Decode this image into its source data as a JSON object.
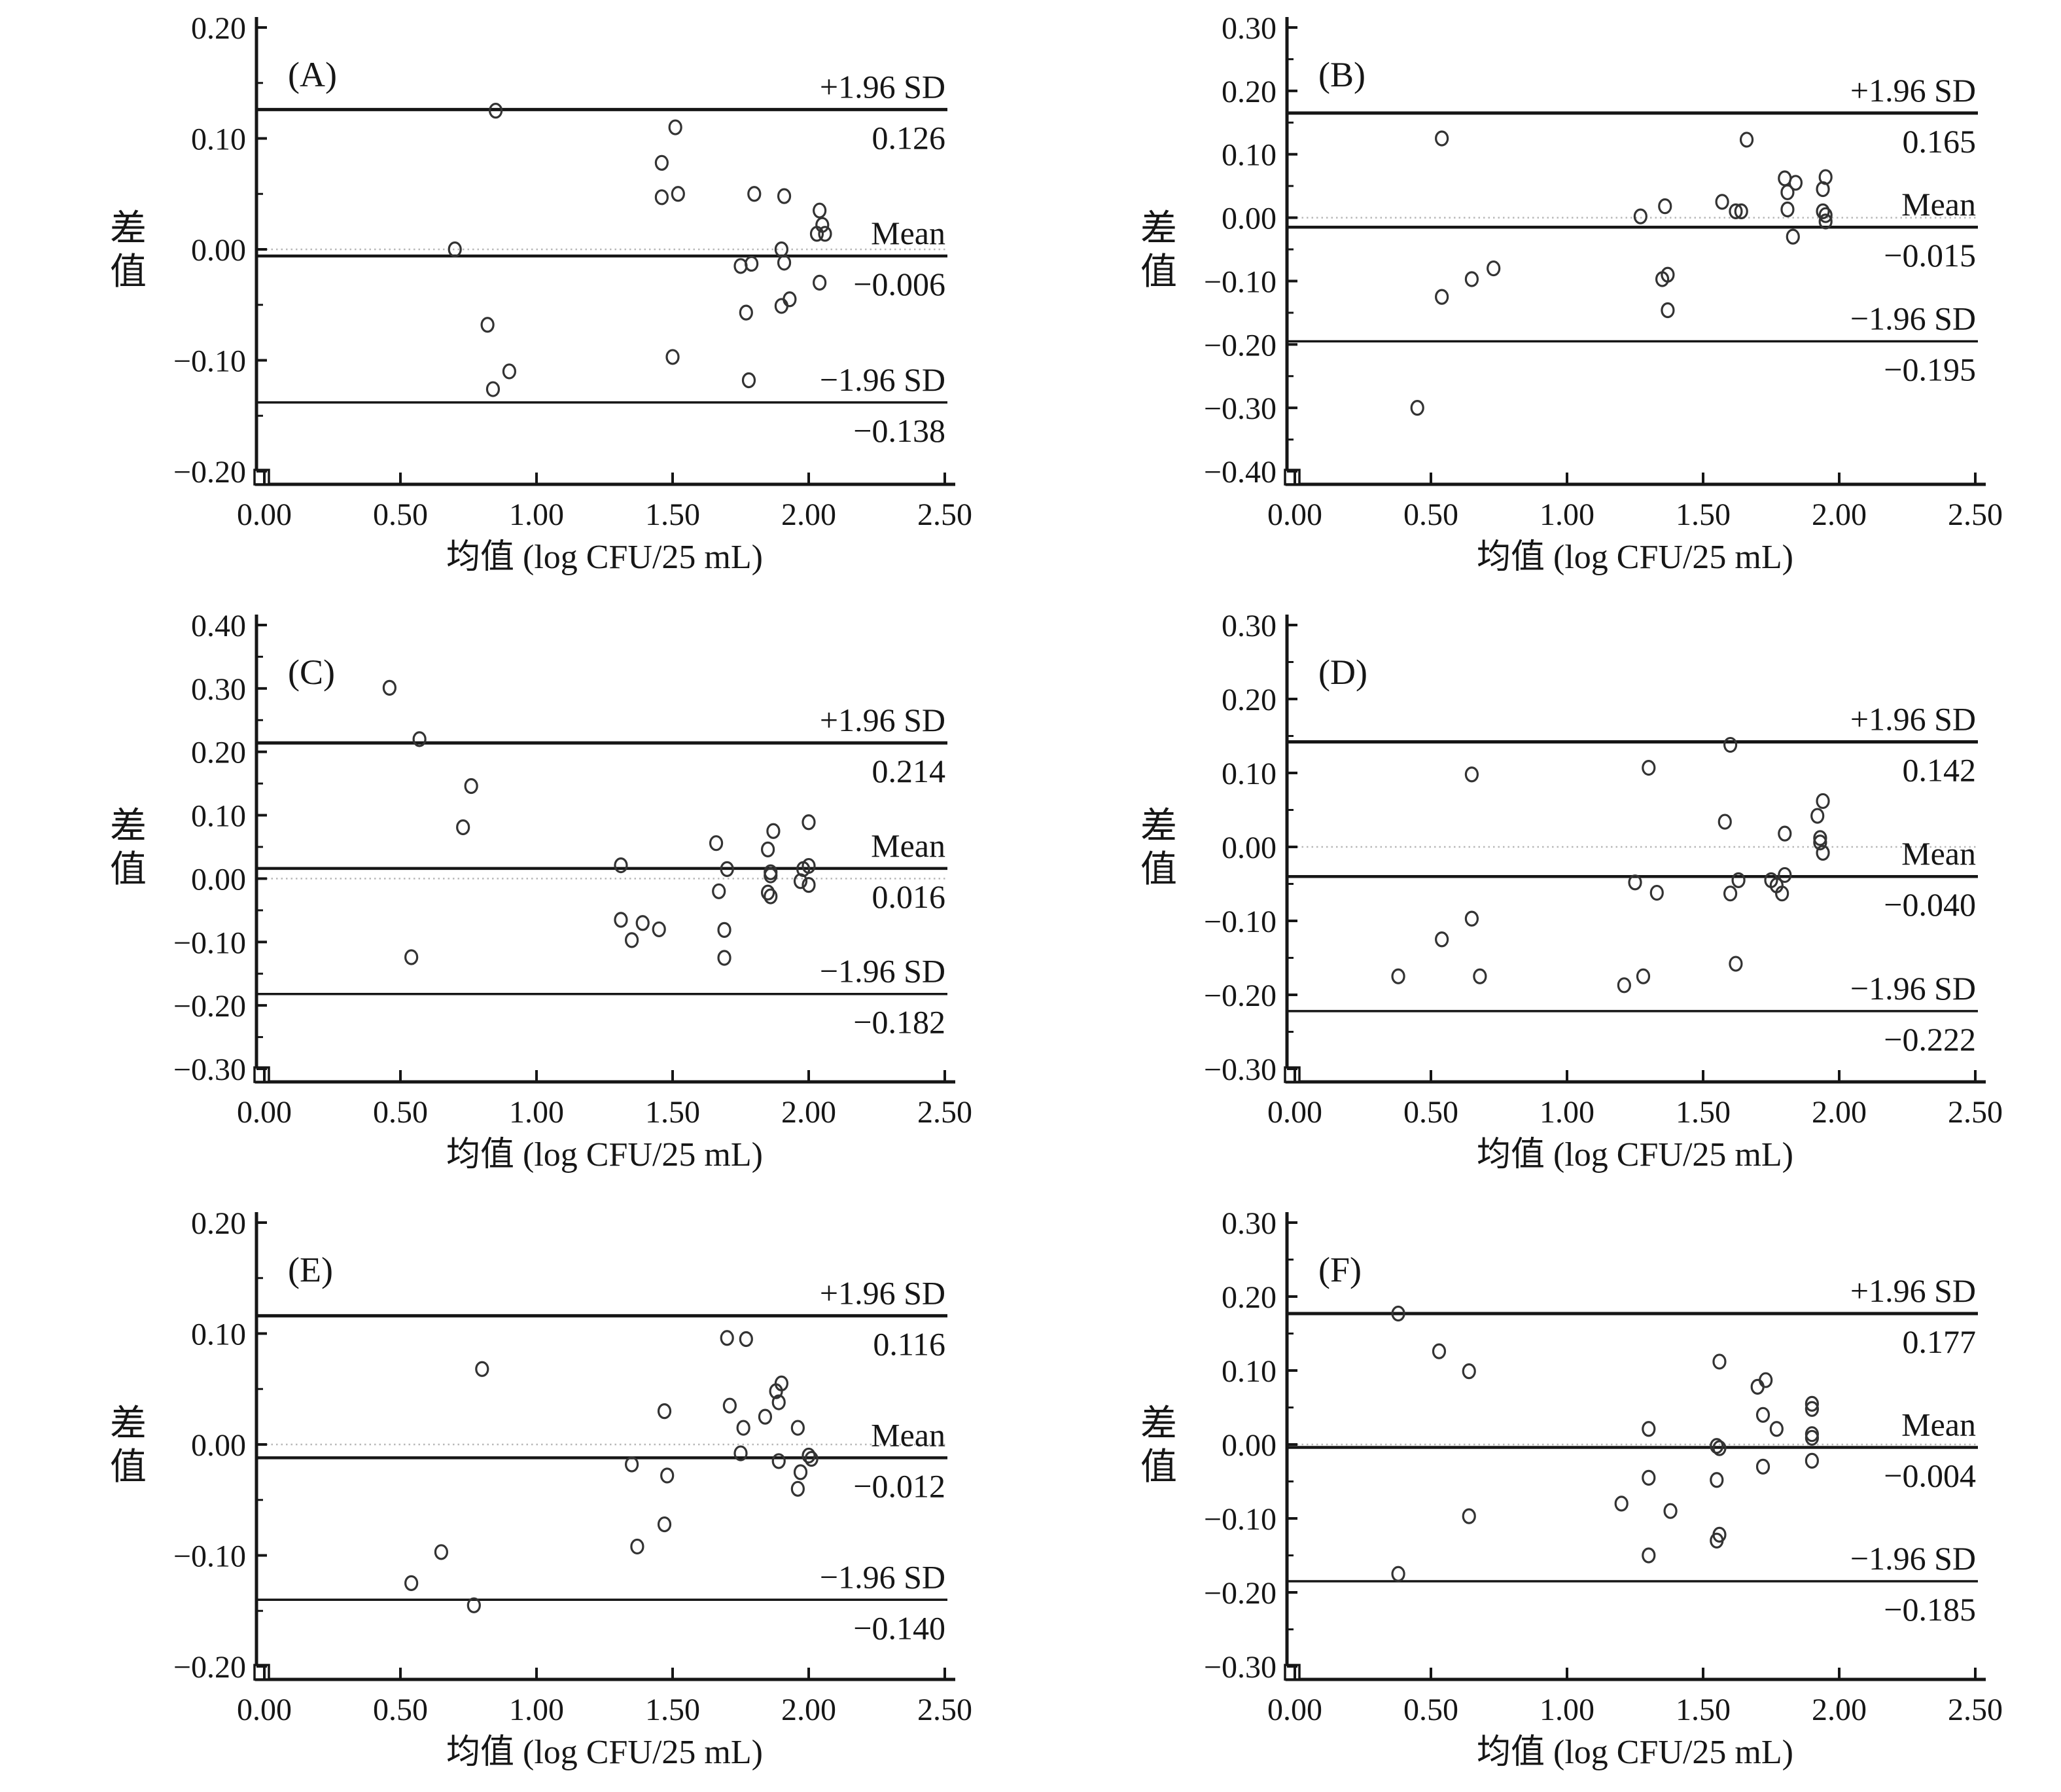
{
  "figure": {
    "xlabel": "均值 (log CFU/25 mL)",
    "ylabel": "差值",
    "upper_label": "+1.96 SD",
    "mean_label": "Mean",
    "lower_label": "−1.96 SD",
    "line_color": "#161616",
    "point_color": "#333333",
    "zero_line_color": "#b8b8b8"
  },
  "chart_data": [
    {
      "type": "scatter",
      "panel": "(A)",
      "xlabel": "均值 (log CFU/25 mL)",
      "ylabel": "差值",
      "xlim": [
        0.0,
        2.5
      ],
      "ylim": [
        -0.2,
        0.2
      ],
      "xticks": [
        0.0,
        0.5,
        1.0,
        1.5,
        2.0,
        2.5
      ],
      "yticks": [
        0.2,
        0.1,
        0.0,
        -0.1,
        -0.2
      ],
      "grid": false,
      "legend": false,
      "upper": 0.126,
      "mean": -0.006,
      "lower": -0.138,
      "upper_text": "0.126",
      "mean_text": "−0.006",
      "lower_text": "−0.138",
      "points": [
        [
          0.85,
          0.125
        ],
        [
          1.51,
          0.11
        ],
        [
          1.46,
          0.078
        ],
        [
          1.46,
          0.047
        ],
        [
          1.52,
          0.05
        ],
        [
          1.8,
          0.05
        ],
        [
          1.91,
          0.048
        ],
        [
          2.04,
          0.035
        ],
        [
          2.05,
          0.022
        ],
        [
          2.03,
          0.014
        ],
        [
          2.06,
          0.014
        ],
        [
          0.7,
          0.0
        ],
        [
          1.9,
          0.0
        ],
        [
          1.75,
          -0.015
        ],
        [
          1.79,
          -0.013
        ],
        [
          1.91,
          -0.012
        ],
        [
          2.04,
          -0.03
        ],
        [
          1.93,
          -0.045
        ],
        [
          1.9,
          -0.051
        ],
        [
          1.77,
          -0.057
        ],
        [
          0.82,
          -0.068
        ],
        [
          1.5,
          -0.097
        ],
        [
          0.9,
          -0.11
        ],
        [
          1.78,
          -0.118
        ],
        [
          0.84,
          -0.126
        ]
      ]
    },
    {
      "type": "scatter",
      "panel": "(B)",
      "xlabel": "均值 (log CFU/25 mL)",
      "ylabel": "差值",
      "xlim": [
        0.0,
        2.5
      ],
      "ylim": [
        -0.4,
        0.3
      ],
      "xticks": [
        0.0,
        0.5,
        1.0,
        1.5,
        2.0,
        2.5
      ],
      "yticks": [
        0.3,
        0.2,
        0.1,
        0.0,
        -0.1,
        -0.2,
        -0.3,
        -0.4
      ],
      "grid": false,
      "legend": false,
      "upper": 0.165,
      "mean": -0.015,
      "lower": -0.195,
      "upper_text": "0.165",
      "mean_text": "−0.015",
      "lower_text": "−0.195",
      "points": [
        [
          0.54,
          0.125
        ],
        [
          1.66,
          0.123
        ],
        [
          1.95,
          0.064
        ],
        [
          1.8,
          0.062
        ],
        [
          1.84,
          0.055
        ],
        [
          1.94,
          0.045
        ],
        [
          1.81,
          0.04
        ],
        [
          1.57,
          0.025
        ],
        [
          1.36,
          0.018
        ],
        [
          1.81,
          0.013
        ],
        [
          1.62,
          0.01
        ],
        [
          1.64,
          0.01
        ],
        [
          1.94,
          0.01
        ],
        [
          1.95,
          0.004
        ],
        [
          1.27,
          0.002
        ],
        [
          1.95,
          -0.006
        ],
        [
          1.83,
          -0.03
        ],
        [
          0.73,
          -0.08
        ],
        [
          1.37,
          -0.09
        ],
        [
          0.65,
          -0.097
        ],
        [
          1.35,
          -0.097
        ],
        [
          0.54,
          -0.125
        ],
        [
          1.37,
          -0.146
        ],
        [
          0.45,
          -0.3
        ]
      ]
    },
    {
      "type": "scatter",
      "panel": "(C)",
      "xlabel": "均值 (log CFU/25 mL)",
      "ylabel": "差值",
      "xlim": [
        0.0,
        2.5
      ],
      "ylim": [
        -0.3,
        0.4
      ],
      "xticks": [
        0.0,
        0.5,
        1.0,
        1.5,
        2.0,
        2.5
      ],
      "yticks": [
        0.4,
        0.3,
        0.2,
        0.1,
        0.0,
        -0.1,
        -0.2,
        -0.3
      ],
      "grid": false,
      "legend": false,
      "upper": 0.214,
      "mean": 0.016,
      "lower": -0.182,
      "upper_text": "0.214",
      "mean_text": "0.016",
      "lower_text": "−0.182",
      "points": [
        [
          0.46,
          0.301
        ],
        [
          0.57,
          0.22
        ],
        [
          0.76,
          0.146
        ],
        [
          0.73,
          0.081
        ],
        [
          2.0,
          0.089
        ],
        [
          1.87,
          0.075
        ],
        [
          1.66,
          0.056
        ],
        [
          1.85,
          0.046
        ],
        [
          1.31,
          0.021
        ],
        [
          2.0,
          0.02
        ],
        [
          1.7,
          0.015
        ],
        [
          1.98,
          0.015
        ],
        [
          1.86,
          0.01
        ],
        [
          1.86,
          0.005
        ],
        [
          1.97,
          -0.004
        ],
        [
          2.0,
          -0.01
        ],
        [
          1.67,
          -0.02
        ],
        [
          1.85,
          -0.022
        ],
        [
          1.86,
          -0.028
        ],
        [
          1.31,
          -0.065
        ],
        [
          1.39,
          -0.07
        ],
        [
          1.45,
          -0.08
        ],
        [
          1.69,
          -0.081
        ],
        [
          1.35,
          -0.097
        ],
        [
          1.69,
          -0.125
        ],
        [
          0.54,
          -0.124
        ]
      ]
    },
    {
      "type": "scatter",
      "panel": "(D)",
      "xlabel": "均值 (log CFU/25 mL)",
      "ylabel": "差值",
      "xlim": [
        0.0,
        2.5
      ],
      "ylim": [
        -0.3,
        0.3
      ],
      "xticks": [
        0.0,
        0.5,
        1.0,
        1.5,
        2.0,
        2.5
      ],
      "yticks": [
        0.3,
        0.2,
        0.1,
        0.0,
        -0.1,
        -0.2,
        -0.3
      ],
      "grid": false,
      "legend": false,
      "upper": 0.142,
      "mean": -0.04,
      "lower": -0.222,
      "upper_text": "0.142",
      "mean_text": "−0.040",
      "lower_text": "−0.222",
      "points": [
        [
          1.6,
          0.138
        ],
        [
          1.3,
          0.107
        ],
        [
          0.65,
          0.098
        ],
        [
          1.94,
          0.062
        ],
        [
          1.92,
          0.042
        ],
        [
          1.58,
          0.034
        ],
        [
          1.8,
          0.018
        ],
        [
          1.93,
          0.012
        ],
        [
          1.93,
          0.006
        ],
        [
          1.94,
          -0.008
        ],
        [
          1.8,
          -0.038
        ],
        [
          1.25,
          -0.048
        ],
        [
          1.63,
          -0.045
        ],
        [
          1.75,
          -0.045
        ],
        [
          1.77,
          -0.052
        ],
        [
          1.33,
          -0.062
        ],
        [
          1.6,
          -0.063
        ],
        [
          1.79,
          -0.063
        ],
        [
          0.65,
          -0.097
        ],
        [
          0.54,
          -0.125
        ],
        [
          1.62,
          -0.158
        ],
        [
          0.38,
          -0.175
        ],
        [
          0.68,
          -0.175
        ],
        [
          1.28,
          -0.175
        ],
        [
          1.21,
          -0.187
        ]
      ]
    },
    {
      "type": "scatter",
      "panel": "(E)",
      "xlabel": "均值 (log CFU/25 mL)",
      "ylabel": "差值",
      "xlim": [
        0.0,
        2.5
      ],
      "ylim": [
        -0.2,
        0.2
      ],
      "xticks": [
        0.0,
        0.5,
        1.0,
        1.5,
        2.0,
        2.5
      ],
      "yticks": [
        0.2,
        0.1,
        0.0,
        -0.1,
        -0.2
      ],
      "grid": false,
      "legend": false,
      "upper": 0.116,
      "mean": -0.012,
      "lower": -0.14,
      "upper_text": "0.116",
      "mean_text": "−0.012",
      "lower_text": "−0.140",
      "points": [
        [
          1.7,
          0.096
        ],
        [
          1.77,
          0.095
        ],
        [
          0.8,
          0.068
        ],
        [
          1.9,
          0.055
        ],
        [
          1.88,
          0.048
        ],
        [
          1.89,
          0.038
        ],
        [
          1.71,
          0.035
        ],
        [
          1.47,
          0.03
        ],
        [
          1.84,
          0.025
        ],
        [
          1.76,
          0.015
        ],
        [
          1.96,
          0.015
        ],
        [
          1.75,
          -0.008
        ],
        [
          1.35,
          -0.018
        ],
        [
          1.89,
          -0.015
        ],
        [
          2.0,
          -0.01
        ],
        [
          2.01,
          -0.013
        ],
        [
          1.48,
          -0.028
        ],
        [
          1.97,
          -0.025
        ],
        [
          1.96,
          -0.04
        ],
        [
          1.47,
          -0.072
        ],
        [
          1.37,
          -0.092
        ],
        [
          0.65,
          -0.097
        ],
        [
          0.54,
          -0.125
        ],
        [
          0.77,
          -0.145
        ]
      ]
    },
    {
      "type": "scatter",
      "panel": "(F)",
      "xlabel": "均值 (log CFU/25 mL)",
      "ylabel": "差值",
      "xlim": [
        0.0,
        2.5
      ],
      "ylim": [
        -0.3,
        0.3
      ],
      "xticks": [
        0.0,
        0.5,
        1.0,
        1.5,
        2.0,
        2.5
      ],
      "yticks": [
        0.3,
        0.2,
        0.1,
        0.0,
        -0.1,
        -0.2,
        -0.3
      ],
      "grid": false,
      "legend": false,
      "upper": 0.177,
      "mean": -0.004,
      "lower": -0.185,
      "upper_text": "0.177",
      "mean_text": "−0.004",
      "lower_text": "−0.185",
      "points": [
        [
          0.38,
          0.177
        ],
        [
          0.53,
          0.126
        ],
        [
          1.56,
          0.112
        ],
        [
          0.64,
          0.099
        ],
        [
          1.73,
          0.087
        ],
        [
          1.7,
          0.078
        ],
        [
          1.9,
          0.055
        ],
        [
          1.9,
          0.048
        ],
        [
          1.72,
          0.04
        ],
        [
          1.3,
          0.021
        ],
        [
          1.77,
          0.021
        ],
        [
          1.9,
          0.014
        ],
        [
          1.9,
          0.009
        ],
        [
          1.55,
          -0.002
        ],
        [
          1.56,
          -0.005
        ],
        [
          1.9,
          -0.022
        ],
        [
          1.72,
          -0.03
        ],
        [
          1.3,
          -0.045
        ],
        [
          1.55,
          -0.048
        ],
        [
          1.2,
          -0.08
        ],
        [
          1.38,
          -0.09
        ],
        [
          0.64,
          -0.097
        ],
        [
          1.56,
          -0.122
        ],
        [
          1.55,
          -0.13
        ],
        [
          1.3,
          -0.15
        ],
        [
          0.38,
          -0.175
        ]
      ]
    }
  ]
}
